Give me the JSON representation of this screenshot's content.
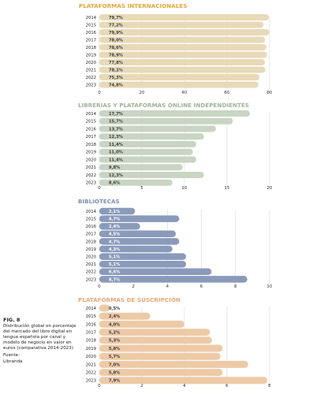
{
  "caption": {
    "fig_label": "FIG. 8",
    "description": "Distribución global en porcentaje del mercado del libro digital en lengua española por canal y modelo de negocio en valor en euros (comparativa 2014-2023)",
    "source_label": "Fuente:",
    "source": "Libranda"
  },
  "chart_data": [
    {
      "type": "bar",
      "orientation": "horizontal",
      "title": "PLATAFORMAS INTERNACIONALES",
      "title_color": "#E5A83B",
      "bar_color": "#E8D9B8",
      "categories": [
        "2014",
        "2015",
        "2016",
        "2017",
        "2018",
        "2019",
        "2020",
        "2021",
        "2022",
        "2023"
      ],
      "values": [
        79.7,
        77.2,
        79.9,
        78.0,
        78.6,
        78.9,
        77.8,
        78.1,
        75.3,
        74.8
      ],
      "labels": [
        "79,7%",
        "77,2%",
        "79,9%",
        "78,0%",
        "78,6%",
        "78,9%",
        "77,8%",
        "78,1%",
        "75,3%",
        "74,8%"
      ],
      "xlim": [
        0,
        80
      ],
      "xticks": [
        "0",
        "20",
        "40",
        "60",
        "80"
      ],
      "grid": true
    },
    {
      "type": "bar",
      "orientation": "horizontal",
      "title": "LIBRERÍAS Y PLATAFORMAS ONLINE INDEPENDIENTES",
      "title_color": "#9FB29A",
      "bar_color": "#C9D5C3",
      "categories": [
        "2014",
        "2015",
        "2016",
        "2017",
        "2018",
        "2019",
        "2020",
        "2021",
        "2022",
        "2023"
      ],
      "values": [
        17.7,
        15.7,
        13.7,
        12.3,
        11.4,
        11.0,
        11.4,
        9.8,
        12.3,
        8.6
      ],
      "labels": [
        "17,7%",
        "15,7%",
        "13,7%",
        "12,3%",
        "11,4%",
        "11,0%",
        "11,4%",
        "9,8%",
        "12,3%",
        "8,6%"
      ],
      "xlim": [
        0,
        20
      ],
      "xticks": [
        "0",
        "5",
        "10",
        "15",
        "20"
      ],
      "grid": true
    },
    {
      "type": "bar",
      "orientation": "horizontal",
      "title": "BIBLIOTECAS",
      "title_color": "#7D8FB3",
      "bar_color": "#8A9ABB",
      "label_color": "#ffffff",
      "categories": [
        "2014",
        "2015",
        "2016",
        "2017",
        "2018",
        "2019",
        "2020",
        "2021",
        "2022",
        "2023"
      ],
      "values": [
        2.1,
        4.7,
        2.4,
        4.5,
        4.7,
        4.3,
        5.1,
        5.1,
        6.6,
        8.7
      ],
      "labels": [
        "2,1%",
        "4,7%",
        "2,4%",
        "4,5%",
        "4,7%",
        "4,3%",
        "5,1%",
        "5,1%",
        "6,6%",
        "8,7%"
      ],
      "xlim": [
        0,
        10
      ],
      "xticks": [
        "0",
        "2",
        "4",
        "6",
        "8",
        "10"
      ],
      "grid": true
    },
    {
      "type": "bar",
      "orientation": "horizontal",
      "title": "PLATAFORMAS DE SUSCRIPCIÓN",
      "title_color": "#E8A878",
      "bar_color": "#EDCAA7",
      "categories": [
        "2014",
        "2015",
        "2016",
        "2017",
        "2018",
        "2019",
        "2020",
        "2021",
        "2022",
        "2023"
      ],
      "values": [
        0.5,
        2.4,
        4.0,
        5.2,
        5.3,
        5.8,
        5.7,
        7.0,
        5.8,
        7.9
      ],
      "labels": [
        "0,5%",
        "2,4%",
        "4,0%",
        "5,2%",
        "5,3%",
        "5,8%",
        "5,7%",
        "7,0%",
        "5,8%",
        "7,9%"
      ],
      "xlim": [
        0,
        8
      ],
      "xticks": [
        "0",
        "2",
        "4",
        "6",
        "8"
      ],
      "grid": true
    }
  ]
}
